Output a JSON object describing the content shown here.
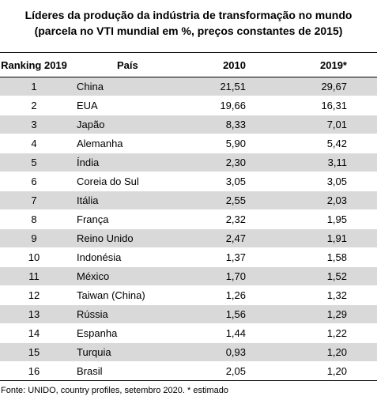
{
  "title": {
    "line1": "Líderes da produção da indústria de transformação no mundo",
    "line2": "(parcela no VTI mundial em %, preços constantes de 2015)"
  },
  "table": {
    "headers": {
      "rank": "Ranking 2019",
      "country": "País",
      "y2010": "2010",
      "y2019": "2019*"
    },
    "rows": [
      {
        "rank": "1",
        "country": "China",
        "y2010": "21,51",
        "y2019": "29,67"
      },
      {
        "rank": "2",
        "country": "EUA",
        "y2010": "19,66",
        "y2019": "16,31"
      },
      {
        "rank": "3",
        "country": "Japão",
        "y2010": "8,33",
        "y2019": "7,01"
      },
      {
        "rank": "4",
        "country": "Alemanha",
        "y2010": "5,90",
        "y2019": "5,42"
      },
      {
        "rank": "5",
        "country": "Índia",
        "y2010": "2,30",
        "y2019": "3,11"
      },
      {
        "rank": "6",
        "country": "Coreia do Sul",
        "y2010": "3,05",
        "y2019": "3,05"
      },
      {
        "rank": "7",
        "country": "Itália",
        "y2010": "2,55",
        "y2019": "2,03"
      },
      {
        "rank": "8",
        "country": "França",
        "y2010": "2,32",
        "y2019": "1,95"
      },
      {
        "rank": "9",
        "country": "Reino Unido",
        "y2010": "2,47",
        "y2019": "1,91"
      },
      {
        "rank": "10",
        "country": "Indonésia",
        "y2010": "1,37",
        "y2019": "1,58"
      },
      {
        "rank": "11",
        "country": "México",
        "y2010": "1,70",
        "y2019": "1,52"
      },
      {
        "rank": "12",
        "country": "Taiwan (China)",
        "y2010": "1,26",
        "y2019": "1,32"
      },
      {
        "rank": "13",
        "country": "Rússia",
        "y2010": "1,56",
        "y2019": "1,29"
      },
      {
        "rank": "14",
        "country": "Espanha",
        "y2010": "1,44",
        "y2019": "1,22"
      },
      {
        "rank": "15",
        "country": "Turquia",
        "y2010": "0,93",
        "y2019": "1,20"
      },
      {
        "rank": "16",
        "country": "Brasil",
        "y2010": "2,05",
        "y2019": "1,20"
      }
    ]
  },
  "colors": {
    "shaded_row": "#d9d9d9",
    "rule": "#000000"
  },
  "source": "Fonte: UNIDO, country profiles, setembro 2020. * estimado"
}
